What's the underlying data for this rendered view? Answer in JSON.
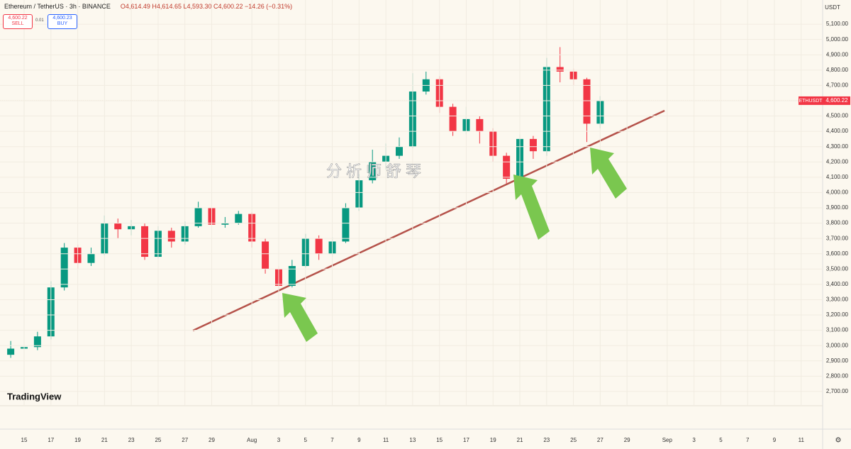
{
  "header": {
    "symbol": "Ethereum / TetherUS · 3h · BINANCE",
    "ohlc": "O4,614.49 H4,614.65 L4,593.30 C4,600.22 −14.26 (−0.31%)",
    "sell_price": "4,600.22",
    "sell": "SELL",
    "spread": "0.01",
    "buy_price": "4,600.23",
    "buy": "BUY",
    "currency": "USDT",
    "logo": "TradingView",
    "watermark": "分析师舒琴"
  },
  "chart_data": {
    "type": "candlestick",
    "x": [
      14,
      15,
      16,
      17,
      18,
      19,
      20,
      21,
      22,
      23,
      24,
      25,
      26,
      27,
      28,
      29,
      30,
      31,
      32,
      33,
      34,
      35,
      36,
      37,
      38,
      39,
      40,
      41,
      42,
      43,
      44,
      45,
      46,
      47,
      48,
      49,
      50,
      51,
      52,
      53,
      54,
      55,
      56,
      57,
      58
    ],
    "open": [
      2940,
      2980,
      2990,
      3060,
      3380,
      3640,
      3540,
      3600,
      3800,
      3760,
      3780,
      3580,
      3750,
      3680,
      3780,
      3900,
      3790,
      3800,
      3860,
      3680,
      3500,
      3390,
      3520,
      3700,
      3600,
      3680,
      3900,
      4080,
      4200,
      4240,
      4300,
      4660,
      4740,
      4560,
      4400,
      4480,
      4400,
      4240,
      4090,
      4350,
      4270,
      4820,
      4790,
      4740,
      4450
    ],
    "high": [
      3030,
      3060,
      3090,
      3420,
      3670,
      3660,
      3640,
      3850,
      3830,
      3820,
      3800,
      3780,
      3770,
      3810,
      3940,
      3910,
      3840,
      3880,
      3870,
      3700,
      3520,
      3560,
      3730,
      3720,
      3710,
      3930,
      4120,
      4280,
      4320,
      4360,
      4780,
      4790,
      4760,
      4580,
      4560,
      4500,
      4420,
      4260,
      4380,
      4370,
      4880,
      4950,
      4810,
      4750,
      4630
    ],
    "low": [
      2920,
      2940,
      2970,
      3040,
      3360,
      3500,
      3520,
      3590,
      3700,
      3720,
      3560,
      3570,
      3640,
      3660,
      3770,
      3760,
      3770,
      3790,
      3640,
      3470,
      3360,
      3380,
      3510,
      3560,
      3580,
      3670,
      3880,
      4060,
      4150,
      4220,
      4290,
      4640,
      4520,
      4370,
      4380,
      4320,
      4200,
      4060,
      4080,
      4220,
      4240,
      4720,
      4700,
      4330,
      4420
    ],
    "close": [
      2980,
      2990,
      3060,
      3380,
      3640,
      3540,
      3600,
      3800,
      3760,
      3780,
      3580,
      3750,
      3680,
      3780,
      3900,
      3790,
      3800,
      3860,
      3680,
      3500,
      3390,
      3520,
      3700,
      3600,
      3680,
      3900,
      4080,
      4200,
      4240,
      4300,
      4660,
      4740,
      4560,
      4400,
      4480,
      4400,
      4240,
      4090,
      4350,
      4270,
      4820,
      4790,
      4740,
      4450,
      4600.22
    ],
    "up_color": "#089981",
    "down_color": "#f23645",
    "xlim": [
      13.2,
      74.6
    ],
    "ylim": [
      2454,
      5258
    ],
    "xticks": [
      15,
      17,
      19,
      21,
      23,
      25,
      27,
      29,
      {
        "value": 32,
        "label": "Aug"
      },
      {
        "value": 34,
        "label": "3"
      },
      {
        "value": 36,
        "label": "5"
      },
      {
        "value": 38,
        "label": "7"
      },
      {
        "value": 40,
        "label": "9"
      },
      {
        "value": 42,
        "label": "11"
      },
      {
        "value": 44,
        "label": "13"
      },
      {
        "value": 46,
        "label": "15"
      },
      {
        "value": 48,
        "label": "17"
      },
      {
        "value": 50,
        "label": "19"
      },
      {
        "value": 52,
        "label": "21"
      },
      {
        "value": 54,
        "label": "23"
      },
      {
        "value": 56,
        "label": "25"
      },
      {
        "value": 58,
        "label": "27"
      },
      {
        "value": 60,
        "label": "29"
      },
      {
        "value": 63,
        "label": "Sep"
      },
      {
        "value": 65,
        "label": "3"
      },
      {
        "value": 67,
        "label": "5"
      },
      {
        "value": 69,
        "label": "7"
      },
      {
        "value": 71,
        "label": "9"
      },
      {
        "value": 73,
        "label": "11"
      }
    ],
    "yticks": [
      {
        "value": 2700,
        "label": "2,700.00"
      },
      {
        "value": 2800,
        "label": "2,800.00"
      },
      {
        "value": 2900,
        "label": "2,900.00"
      },
      {
        "value": 3000,
        "label": "3,000.00"
      },
      {
        "value": 3100,
        "label": "3,100.00"
      },
      {
        "value": 3200,
        "label": "3,200.00"
      },
      {
        "value": 3300,
        "label": "3,300.00"
      },
      {
        "value": 3400,
        "label": "3,400.00"
      },
      {
        "value": 3500,
        "label": "3,500.00"
      },
      {
        "value": 3600,
        "label": "3,600.00"
      },
      {
        "value": 3700,
        "label": "3,700.00"
      },
      {
        "value": 3800,
        "label": "3,800.00"
      },
      {
        "value": 3900,
        "label": "3,900.00"
      },
      {
        "value": 4000,
        "label": "4,000.00"
      },
      {
        "value": 4100,
        "label": "4,100.00"
      },
      {
        "value": 4200,
        "label": "4,200.00"
      },
      {
        "value": 4300,
        "label": "4,300.00"
      },
      {
        "value": 4400,
        "label": "4,400.00"
      },
      {
        "value": 4500,
        "label": "4,500.00"
      },
      {
        "value": 4600,
        "label": "4,600.00"
      },
      {
        "value": 4700,
        "label": "4,700.00"
      },
      {
        "value": 4800,
        "label": "4,800.00"
      },
      {
        "value": 4900,
        "label": "4,900.00"
      },
      {
        "value": 5000,
        "label": "5,000.00"
      },
      {
        "value": 5100,
        "label": "5,100.00"
      }
    ],
    "grid": true,
    "last_price": {
      "symbol": "ETHUSDT",
      "value": 4600.22,
      "label": "4,600.22",
      "color": "#f23645"
    },
    "trendline": {
      "x": [
        27.6,
        62.8
      ],
      "y": [
        3098,
        4535
      ],
      "color": "#b5524a"
    }
  }
}
